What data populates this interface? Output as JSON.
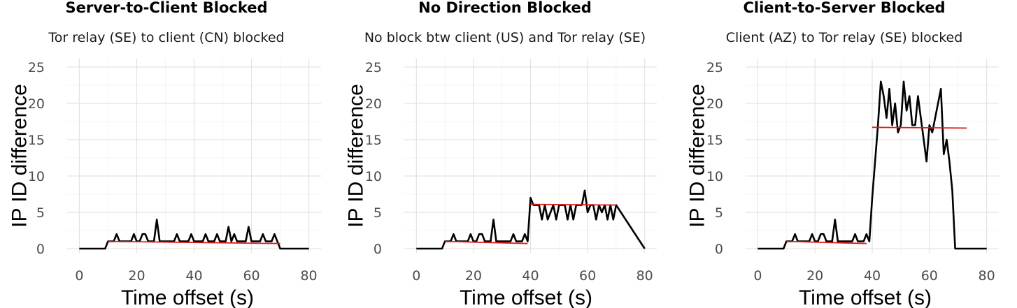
{
  "chart_data": [
    {
      "type": "line",
      "title": "Server-to-Client Blocked",
      "subtitle": "Tor relay (SE) to client (CN) blocked",
      "xlabel": "Time offset (s)",
      "ylabel": "IP ID difference",
      "xlim": [
        0,
        80
      ],
      "ylim": [
        0,
        25
      ],
      "xticks": [
        0,
        20,
        40,
        60,
        80
      ],
      "yticks": [
        0,
        5,
        10,
        15,
        20,
        25
      ],
      "grid": true,
      "series": [
        {
          "color": "#000000",
          "x": [
            0,
            9,
            10,
            12,
            13,
            14,
            18,
            19,
            20,
            21,
            22,
            23,
            24,
            26,
            27,
            28,
            33,
            34,
            35,
            38,
            39,
            40,
            43,
            44,
            45,
            47,
            48,
            49,
            51,
            52,
            53,
            54,
            55,
            58,
            59,
            60,
            63,
            64,
            65,
            67,
            68,
            69,
            70,
            80
          ],
          "y": [
            0,
            0,
            1,
            1,
            2,
            1,
            1,
            2,
            1,
            1,
            2,
            2,
            1,
            1,
            4,
            1,
            1,
            2,
            1,
            1,
            2,
            1,
            1,
            2,
            1,
            1,
            2,
            1,
            1,
            3,
            1,
            2,
            1,
            1,
            3,
            1,
            1,
            2,
            1,
            1,
            2,
            1,
            0,
            0
          ]
        },
        {
          "color": "#e01a1a",
          "x": [
            10,
            70
          ],
          "y": [
            1.0,
            0.7
          ]
        }
      ]
    },
    {
      "type": "line",
      "title": "No Direction Blocked",
      "subtitle": "No block btw client (US) and Tor relay (SE)",
      "xlabel": "Time offset (s)",
      "ylabel": "IP ID difference",
      "xlim": [
        0,
        80
      ],
      "ylim": [
        0,
        25
      ],
      "xticks": [
        0,
        20,
        40,
        60,
        80
      ],
      "yticks": [
        0,
        5,
        10,
        15,
        20,
        25
      ],
      "grid": true,
      "series": [
        {
          "color": "#000000",
          "x": [
            0,
            9,
            10,
            12,
            13,
            14,
            18,
            19,
            20,
            21,
            22,
            23,
            24,
            26,
            27,
            28,
            33,
            34,
            35,
            37,
            38,
            39,
            40,
            41,
            42,
            43,
            44,
            45,
            46,
            47,
            48,
            49,
            50,
            51,
            52,
            53,
            54,
            55,
            56,
            57,
            58,
            59,
            60,
            61,
            62,
            63,
            64,
            65,
            66,
            67,
            68,
            69,
            70,
            80
          ],
          "y": [
            0,
            0,
            1,
            1,
            2,
            1,
            1,
            2,
            1,
            1,
            2,
            2,
            1,
            1,
            4,
            1,
            1,
            2,
            1,
            1,
            2,
            1,
            7,
            6,
            6,
            6,
            4,
            6,
            4,
            5,
            6,
            4,
            6,
            6,
            6,
            4,
            6,
            4,
            6,
            6,
            6,
            8,
            5,
            6,
            6,
            4,
            6,
            5,
            6,
            4,
            6,
            4,
            6,
            0
          ]
        },
        {
          "color": "#e01a1a",
          "x": [
            10,
            39
          ],
          "y": [
            1.0,
            0.7
          ]
        },
        {
          "color": "#e01a1a",
          "x": [
            40,
            70
          ],
          "y": [
            6.1,
            6.0
          ]
        }
      ]
    },
    {
      "type": "line",
      "title": "Client-to-Server Blocked",
      "subtitle": "Client (AZ) to Tor relay (SE) blocked",
      "xlabel": "Time offset (s)",
      "ylabel": "IP ID difference",
      "xlim": [
        0,
        80
      ],
      "ylim": [
        0,
        25
      ],
      "xticks": [
        0,
        20,
        40,
        60,
        80
      ],
      "yticks": [
        0,
        5,
        10,
        15,
        20,
        25
      ],
      "grid": true,
      "series": [
        {
          "color": "#000000",
          "x": [
            0,
            9,
            10,
            12,
            13,
            14,
            18,
            19,
            20,
            21,
            22,
            23,
            24,
            26,
            27,
            28,
            33,
            34,
            35,
            37,
            38,
            39,
            40,
            41,
            42,
            43,
            44,
            45,
            46,
            47,
            48,
            49,
            50,
            51,
            52,
            53,
            54,
            55,
            56,
            57,
            58,
            59,
            60,
            61,
            62,
            63,
            64,
            65,
            66,
            67,
            68,
            69,
            70,
            71,
            80
          ],
          "y": [
            0,
            0,
            1,
            1,
            2,
            1,
            1,
            2,
            1,
            1,
            2,
            2,
            1,
            1,
            4,
            1,
            1,
            2,
            1,
            1,
            2,
            1,
            7,
            12,
            17,
            23,
            21,
            18,
            22,
            17,
            20,
            16,
            17,
            23,
            19,
            21,
            17,
            17,
            21,
            18,
            15,
            12,
            17,
            16,
            18,
            20,
            22,
            13,
            15,
            12,
            8,
            0,
            0,
            0,
            0
          ]
        },
        {
          "color": "#e01a1a",
          "x": [
            10,
            38
          ],
          "y": [
            1.0,
            0.7
          ]
        },
        {
          "color": "#e01a1a",
          "x": [
            40,
            73
          ],
          "y": [
            16.7,
            16.6
          ]
        }
      ]
    }
  ]
}
